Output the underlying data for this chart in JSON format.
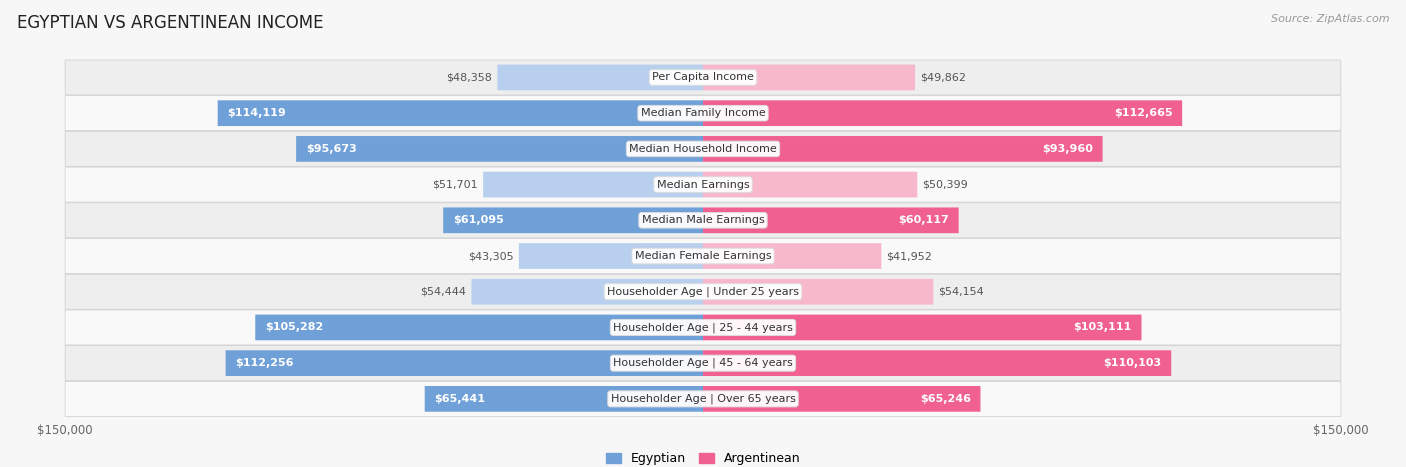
{
  "title": "EGYPTIAN VS ARGENTINEAN INCOME",
  "source": "Source: ZipAtlas.com",
  "categories": [
    "Per Capita Income",
    "Median Family Income",
    "Median Household Income",
    "Median Earnings",
    "Median Male Earnings",
    "Median Female Earnings",
    "Householder Age | Under 25 years",
    "Householder Age | 25 - 44 years",
    "Householder Age | 45 - 64 years",
    "Householder Age | Over 65 years"
  ],
  "egyptian_values": [
    48358,
    114119,
    95673,
    51701,
    61095,
    43305,
    54444,
    105282,
    112256,
    65441
  ],
  "argentinean_values": [
    49862,
    112665,
    93960,
    50399,
    60117,
    41952,
    54154,
    103111,
    110103,
    65246
  ],
  "egyptian_labels": [
    "$48,358",
    "$114,119",
    "$95,673",
    "$51,701",
    "$61,095",
    "$43,305",
    "$54,444",
    "$105,282",
    "$112,256",
    "$65,441"
  ],
  "argentinean_labels": [
    "$49,862",
    "$112,665",
    "$93,960",
    "$50,399",
    "$60,117",
    "$41,952",
    "$54,154",
    "$103,111",
    "$110,103",
    "$65,246"
  ],
  "max_value": 150000,
  "egyptian_color_light": "#b8d0ee",
  "egyptian_color_dark": "#6fa0d8",
  "argentinean_color_light": "#f8b8cc",
  "argentinean_color_dark": "#f06090",
  "label_color_inside": "#ffffff",
  "label_color_outside": "#555555",
  "bar_height": 0.72,
  "background_color": "#f7f7f7",
  "row_bg_odd": "#f9f9f9",
  "row_bg_even": "#eeeeee",
  "title_fontsize": 12,
  "label_fontsize": 8,
  "axis_label_fontsize": 8.5,
  "legend_fontsize": 9,
  "category_fontsize": 8,
  "inside_label_threshold": 60000
}
